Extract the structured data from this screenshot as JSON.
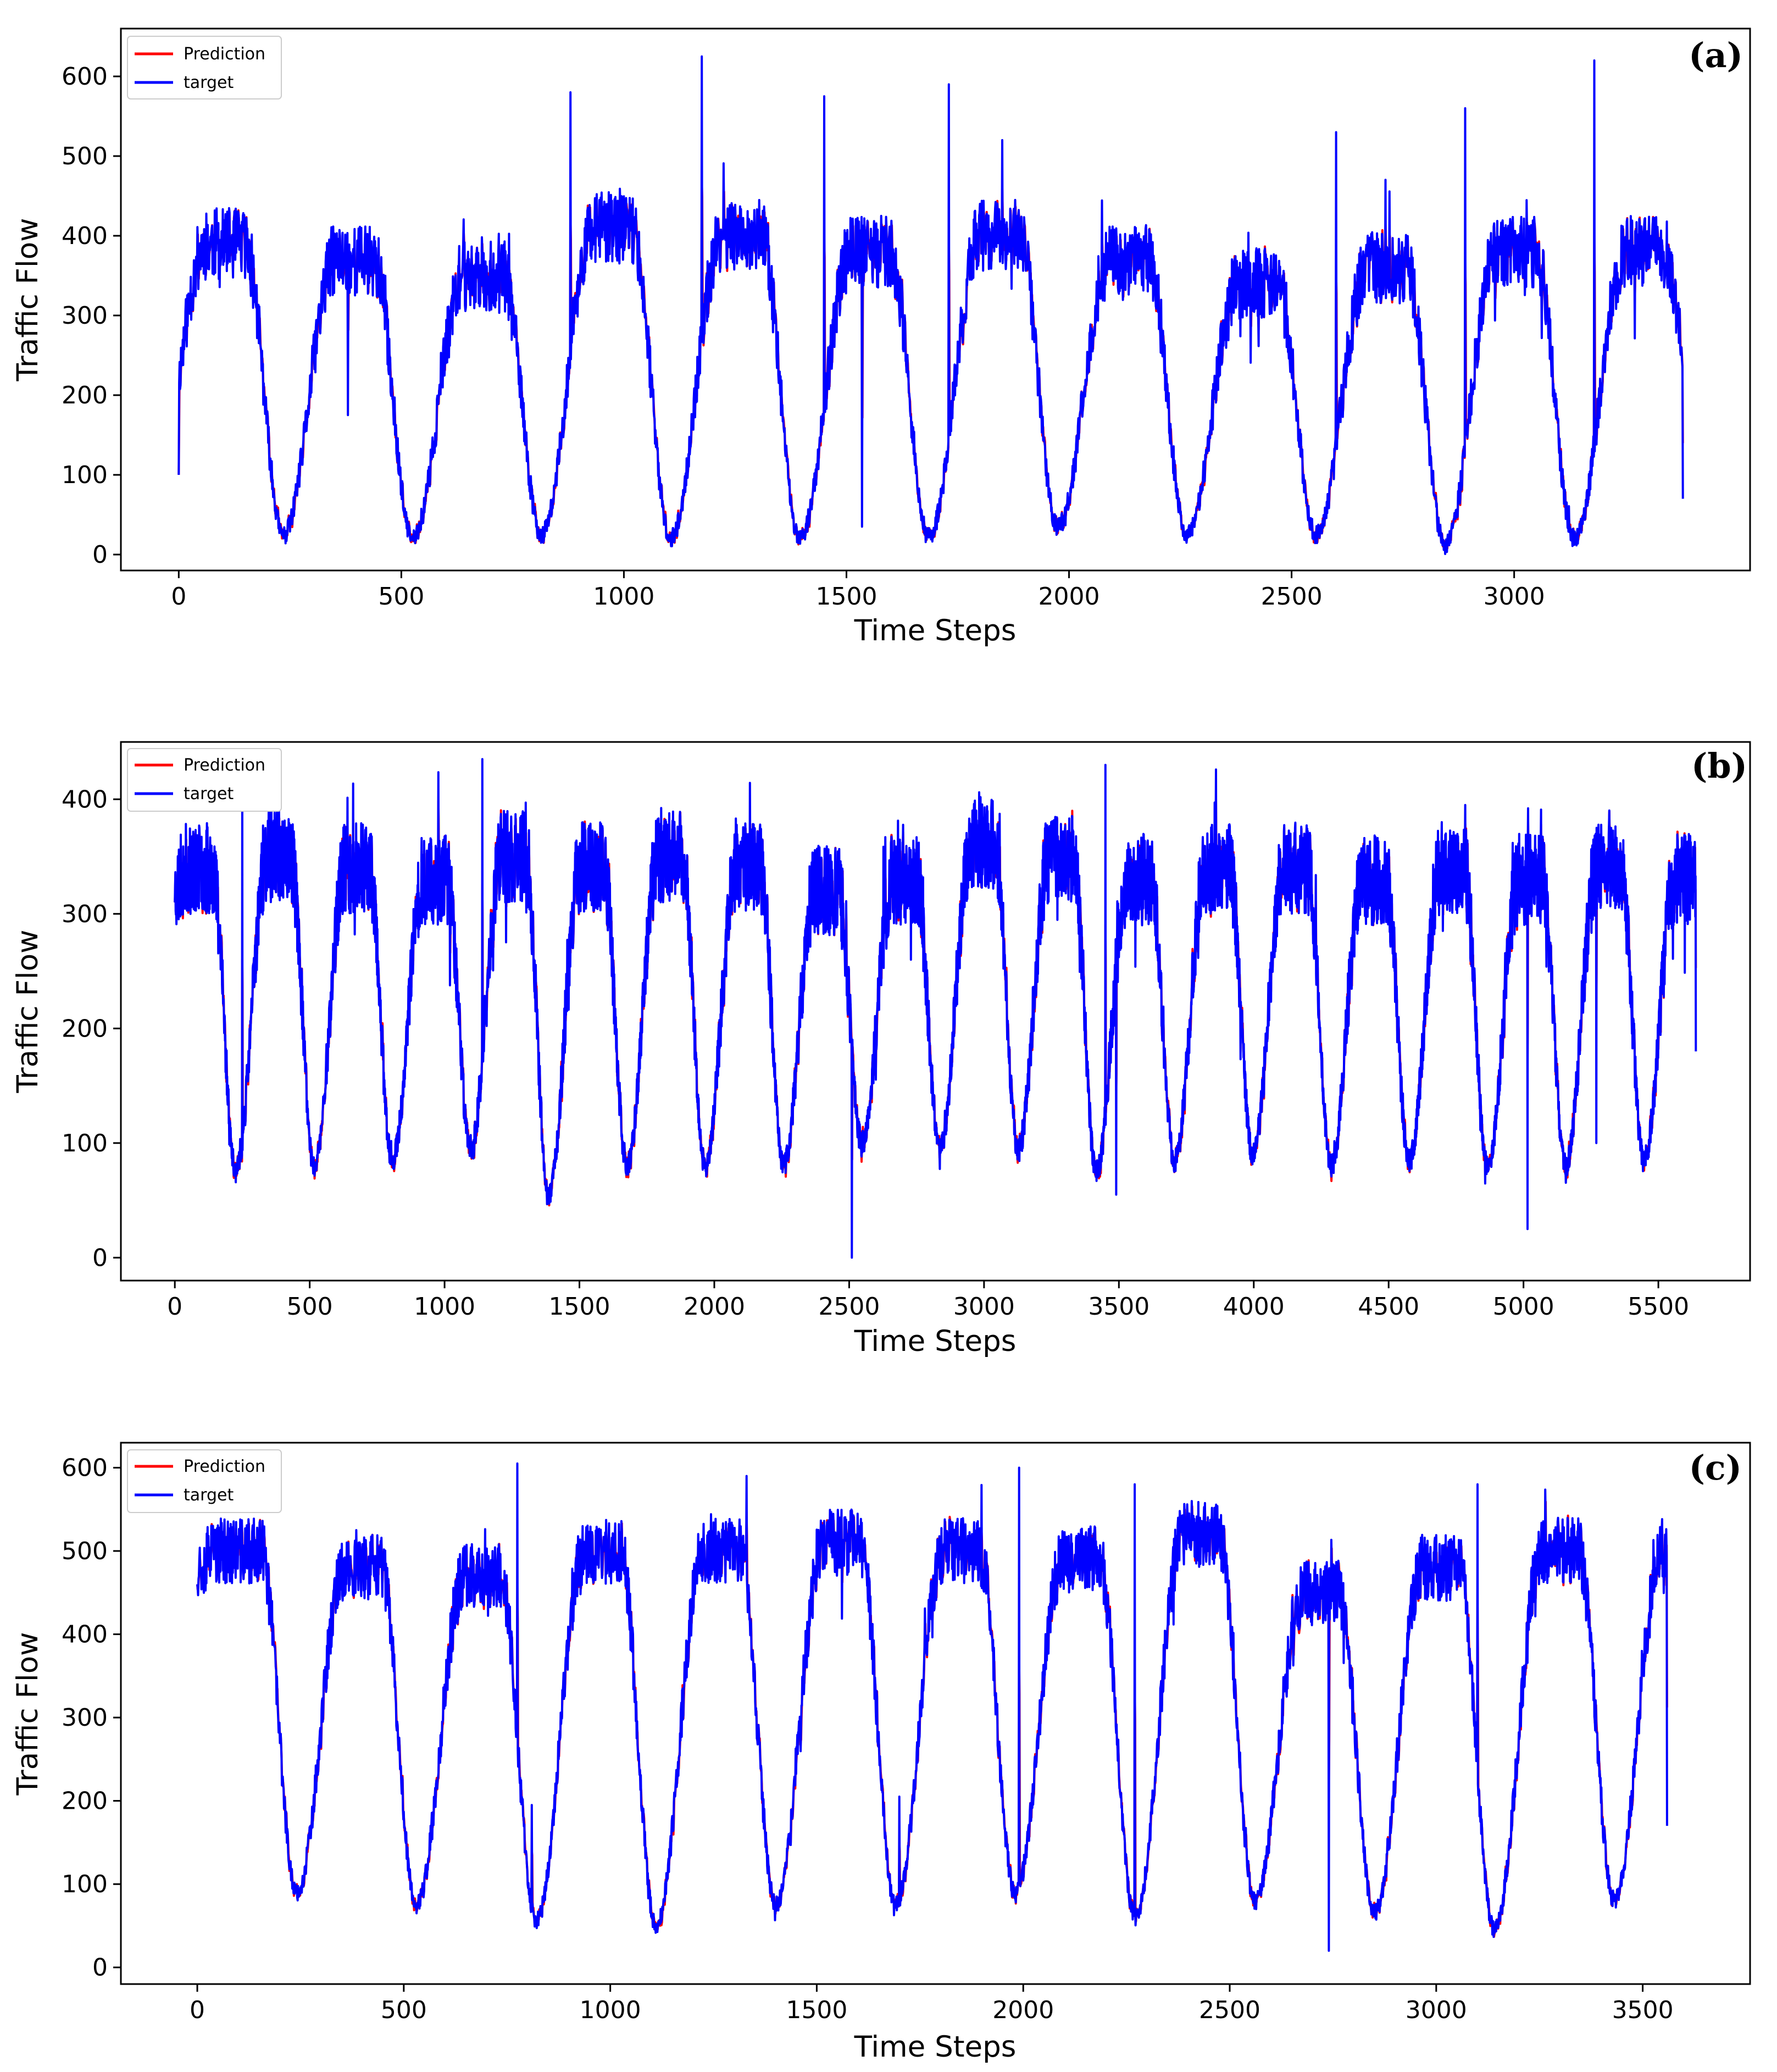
{
  "chart_data": [
    {
      "type": "line",
      "panel_label": "(a)",
      "xlabel": "Time Steps",
      "ylabel": "Traffic Flow",
      "xlim": [
        -130,
        3530
      ],
      "ylim": [
        -20,
        660
      ],
      "xticks": [
        0,
        500,
        1000,
        1500,
        2000,
        2500,
        3000
      ],
      "yticks": [
        0,
        100,
        200,
        300,
        400,
        500,
        600
      ],
      "legend_position": "top-left",
      "series": [
        {
          "name": "Prediction",
          "color": "#ff0000"
        },
        {
          "name": "target",
          "color": "#0000ff"
        }
      ],
      "n_points": 3380,
      "period": 290,
      "phase": 0.19,
      "trough": [
        75,
        25,
        20,
        25,
        20,
        20,
        22,
        35,
        25,
        25,
        12,
        20,
        70
      ],
      "peak": [
        390,
        370,
        350,
        410,
        400,
        380,
        400,
        370,
        340,
        360,
        380,
        380
      ],
      "noise": 45,
      "spikes": [
        [
          880,
          580
        ],
        [
          1175,
          625
        ],
        [
          1450,
          575
        ],
        [
          1730,
          590
        ],
        [
          1535,
          35
        ],
        [
          2600,
          530
        ],
        [
          2890,
          560
        ],
        [
          3180,
          620
        ],
        [
          1850,
          520
        ],
        [
          380,
          175
        ]
      ],
      "start_value": 100,
      "end_value": 70,
      "seed": 11
    },
    {
      "type": "line",
      "panel_label": "(b)",
      "xlabel": "Time Steps",
      "ylabel": "Traffic Flow",
      "xlim": [
        -200,
        5840
      ],
      "ylim": [
        -20,
        450
      ],
      "xticks": [
        0,
        500,
        1000,
        1500,
        2000,
        2500,
        3000,
        3500,
        4000,
        4500,
        5000,
        5500
      ],
      "yticks": [
        0,
        100,
        200,
        300,
        400
      ],
      "legend_position": "top-left",
      "series": [
        {
          "name": "Prediction",
          "color": "#ff0000"
        },
        {
          "name": "target",
          "color": "#0000ff"
        }
      ],
      "n_points": 5640,
      "period": 290,
      "phase": 0.22,
      "trough": [
        290,
        75,
        80,
        85,
        95,
        55,
        80,
        80,
        80,
        100,
        95,
        95,
        75,
        85,
        90,
        80,
        85,
        80,
        80,
        85
      ],
      "peak": [
        340,
        350,
        340,
        330,
        350,
        340,
        350,
        340,
        320,
        330,
        360,
        350,
        330,
        340,
        340,
        330,
        340,
        330,
        340,
        330
      ],
      "noise": 40,
      "spikes": [
        [
          2510,
          0
        ],
        [
          3490,
          55
        ],
        [
          5015,
          25
        ],
        [
          1140,
          435
        ],
        [
          3450,
          430
        ],
        [
          250,
          405
        ],
        [
          5270,
          100
        ]
      ],
      "start_value": 310,
      "end_value": 180,
      "seed": 23
    },
    {
      "type": "line",
      "panel_label": "(c)",
      "xlabel": "Time Steps",
      "ylabel": "Traffic Flow",
      "xlim": [
        -185,
        3760
      ],
      "ylim": [
        -20,
        630
      ],
      "xticks": [
        0,
        500,
        1000,
        1500,
        2000,
        2500,
        3000,
        3500
      ],
      "yticks": [
        0,
        100,
        200,
        300,
        400,
        500,
        600
      ],
      "legend_position": "top-left",
      "series": [
        {
          "name": "Prediction",
          "color": "#ff0000"
        },
        {
          "name": "target",
          "color": "#0000ff"
        }
      ],
      "n_points": 3560,
      "period": 290,
      "phase": 0.17,
      "trough": [
        470,
        90,
        75,
        55,
        50,
        75,
        75,
        90,
        60,
        80,
        65,
        45,
        80,
        170
      ],
      "peak": [
        500,
        480,
        470,
        500,
        500,
        510,
        500,
        490,
        520,
        450,
        480,
        500,
        500
      ],
      "noise": 40,
      "spikes": [
        [
          775,
          605
        ],
        [
          810,
          195
        ],
        [
          1700,
          205
        ],
        [
          1990,
          600
        ],
        [
          2740,
          20
        ],
        [
          2270,
          580
        ],
        [
          3100,
          580
        ],
        [
          1330,
          590
        ]
      ],
      "start_value": 460,
      "end_value": 170,
      "seed": 37
    }
  ]
}
